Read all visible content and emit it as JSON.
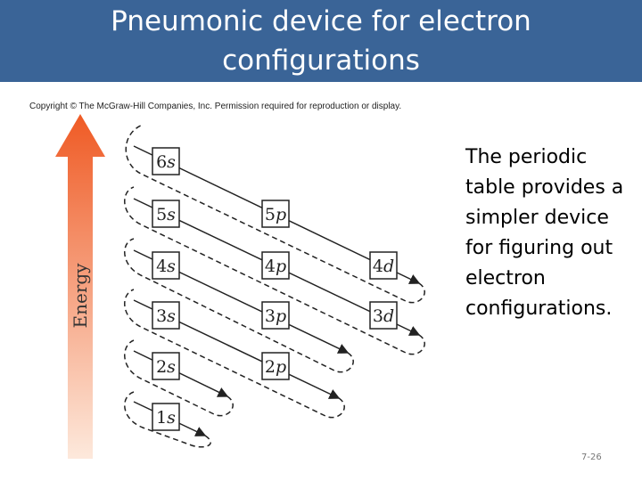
{
  "header": {
    "title": "Pneumonic device for electron configurations"
  },
  "figure": {
    "copyright": "Copyright © The McGraw-Hill Companies, Inc. Permission required for reproduction or display.",
    "axis_label": "Energy",
    "orbitals": [
      {
        "n": "6",
        "l": "s"
      },
      {
        "n": "5",
        "l": "s"
      },
      {
        "n": "5",
        "l": "p"
      },
      {
        "n": "4",
        "l": "s"
      },
      {
        "n": "4",
        "l": "p"
      },
      {
        "n": "4",
        "l": "d"
      },
      {
        "n": "3",
        "l": "s"
      },
      {
        "n": "3",
        "l": "p"
      },
      {
        "n": "3",
        "l": "d"
      },
      {
        "n": "2",
        "l": "s"
      },
      {
        "n": "2",
        "l": "p"
      },
      {
        "n": "1",
        "l": "s"
      }
    ]
  },
  "body": {
    "text": "The periodic table provides a simpler device for figuring out electron configurations."
  },
  "footer": {
    "page": "7-26"
  }
}
